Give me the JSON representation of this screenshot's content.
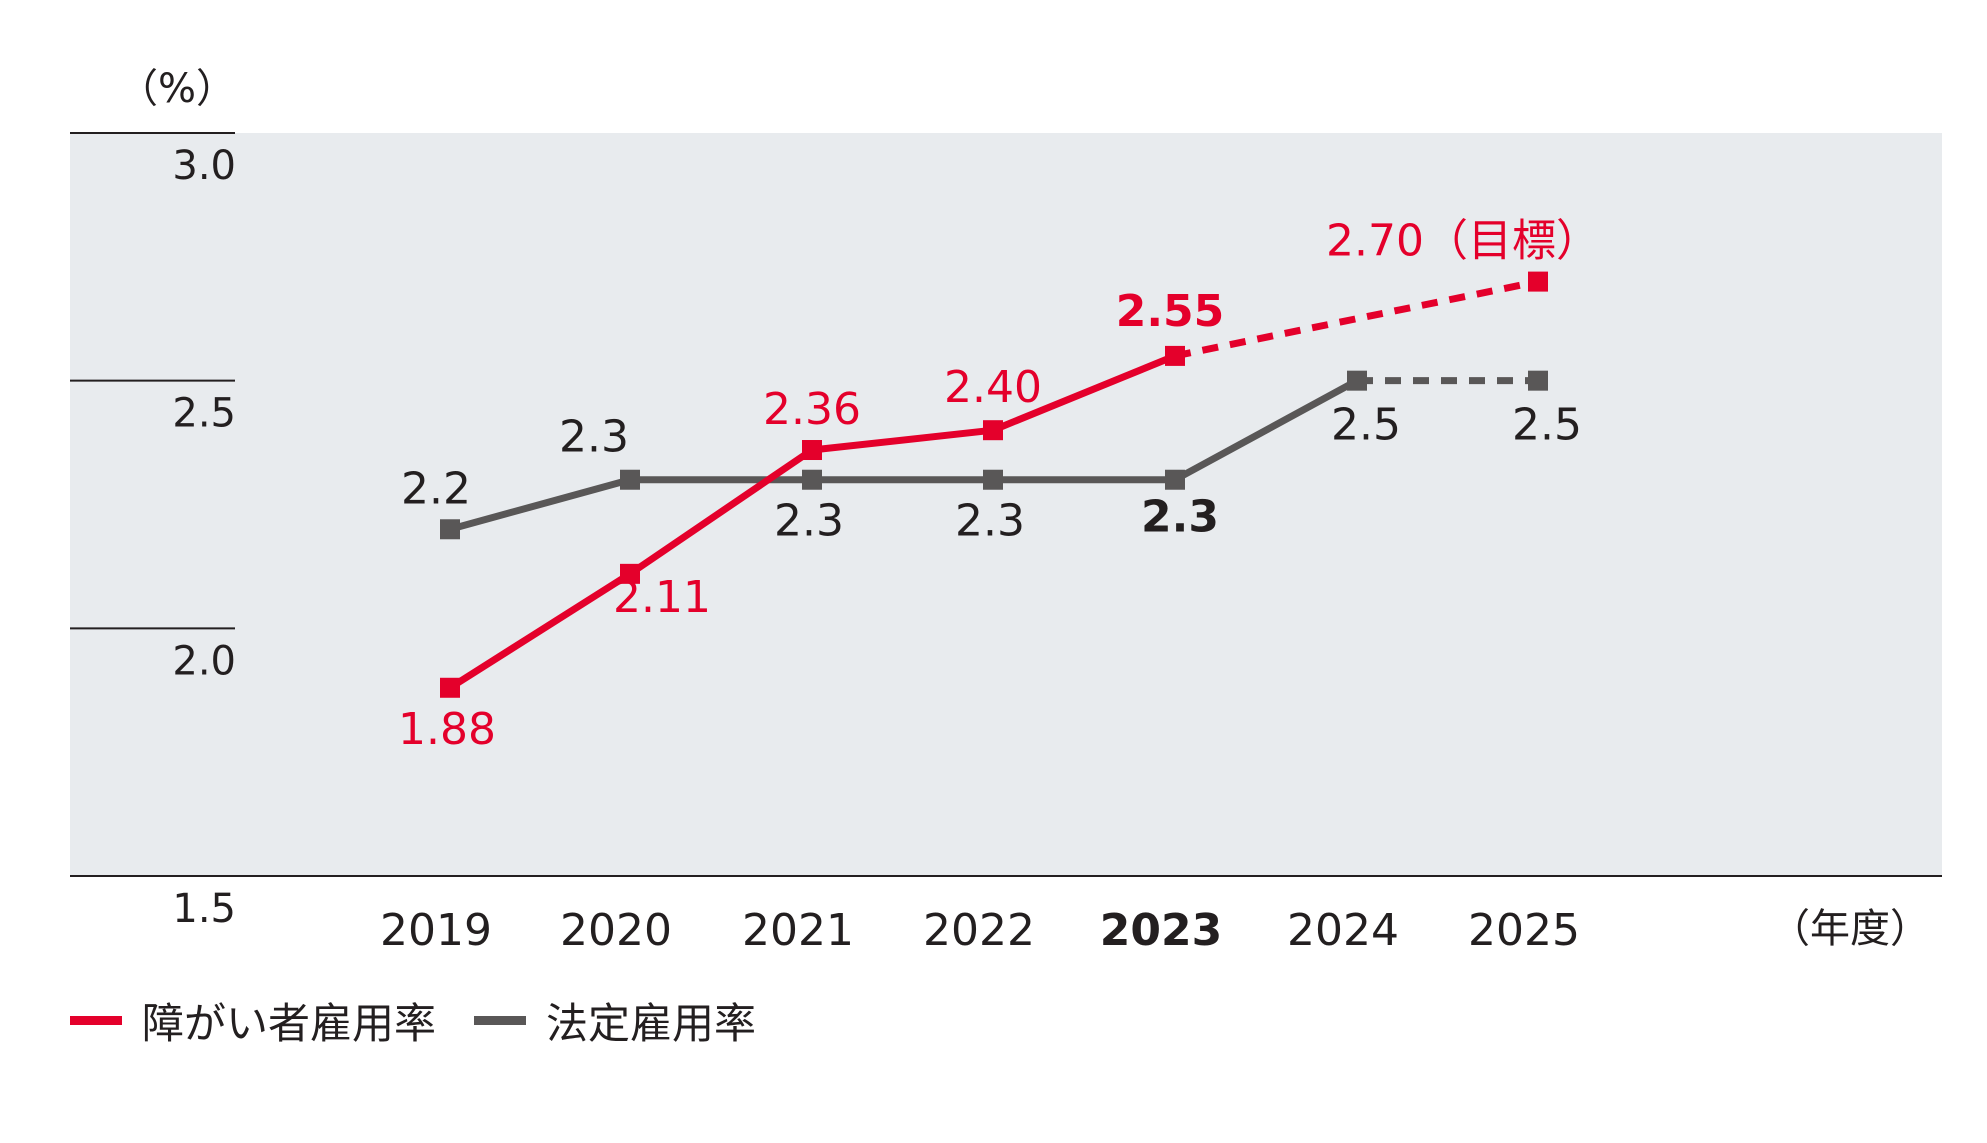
{
  "chart_data": {
    "type": "line",
    "y_unit": "（%）",
    "x_unit": "（年度）",
    "ylim": [
      1.5,
      3.0
    ],
    "yticks": [
      "3.0",
      "2.5",
      "2.0",
      "1.5"
    ],
    "categories": [
      "2019",
      "2020",
      "2021",
      "2022",
      "2023",
      "2024",
      "2025"
    ],
    "highlight_category": "2023",
    "series": [
      {
        "name": "障がい者雇用率",
        "color": "#e4002b",
        "values": [
          1.88,
          2.11,
          2.36,
          2.4,
          2.55,
          null,
          2.7
        ],
        "labels": [
          "1.88",
          "2.11",
          "2.36",
          "2.40",
          "2.55",
          "",
          "2.70（目標）"
        ],
        "dashed_from_index": 4
      },
      {
        "name": "法定雇用率",
        "color": "#595757",
        "values": [
          2.2,
          2.3,
          2.3,
          2.3,
          2.3,
          2.5,
          2.5
        ],
        "labels": [
          "2.2",
          "2.3",
          "2.3",
          "2.3",
          "2.3",
          "2.5",
          "2.5"
        ],
        "dashed_from_index": 5
      }
    ],
    "plot_background": "#e8ebee",
    "grid": false
  },
  "legend": {
    "items": [
      {
        "label": "障がい者雇用率",
        "color": "#e4002b"
      },
      {
        "label": "法定雇用率",
        "color": "#595757"
      }
    ]
  }
}
